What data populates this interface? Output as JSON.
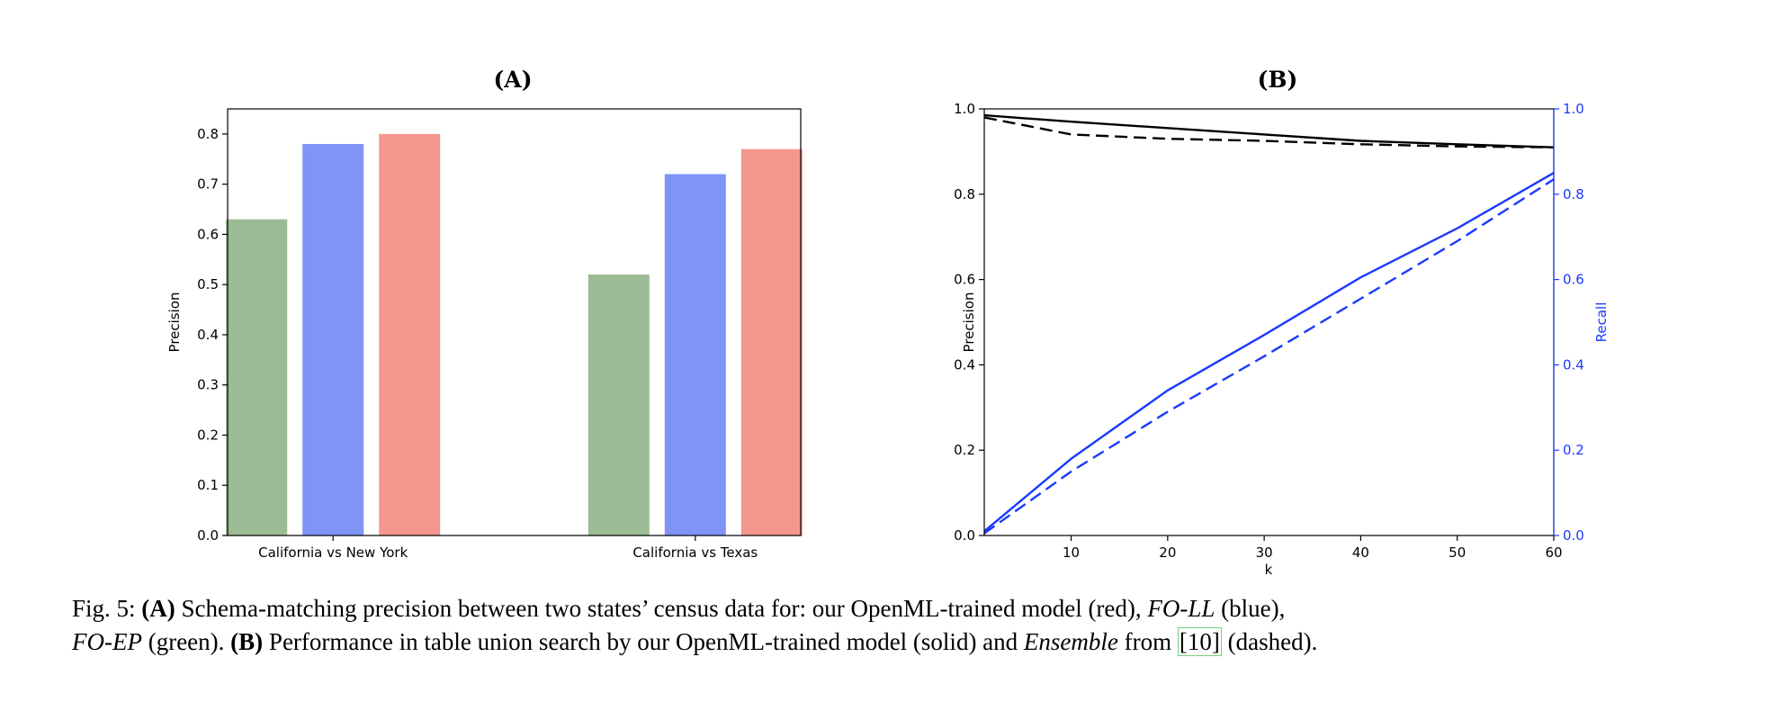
{
  "chart_data": [
    {
      "type": "bar",
      "title": "(A)",
      "ylabel": "Precision",
      "xlabel": "",
      "ylim": [
        0,
        0.85
      ],
      "yticks": [
        "0.0",
        "0.1",
        "0.2",
        "0.3",
        "0.4",
        "0.5",
        "0.6",
        "0.7",
        "0.8"
      ],
      "categories": [
        "California vs New York",
        "California vs Texas"
      ],
      "series": [
        {
          "color": "#9cbb94",
          "values": [
            0.63,
            0.52
          ]
        },
        {
          "color": "#8093f7",
          "values": [
            0.78,
            0.72
          ]
        },
        {
          "color": "#f4978f",
          "values": [
            0.8,
            0.77
          ]
        }
      ],
      "grid": false
    },
    {
      "type": "line",
      "title": "(B)",
      "xlabel": "k",
      "ylabel": "Precision",
      "ylabel_right": "Recall",
      "xlim": [
        1,
        60
      ],
      "ylim": [
        0,
        1.0
      ],
      "ylim_right": [
        0,
        1.0
      ],
      "xticks": [
        "10",
        "20",
        "30",
        "40",
        "50",
        "60"
      ],
      "yticks": [
        "0.0",
        "0.2",
        "0.4",
        "0.6",
        "0.8",
        "1.0"
      ],
      "yticks_right": [
        "0.0",
        "0.2",
        "0.4",
        "0.6",
        "0.8",
        "1.0"
      ],
      "x": [
        1,
        10,
        20,
        30,
        40,
        50,
        60
      ],
      "series": [
        {
          "axis": "left",
          "color": "#000000",
          "style": "solid",
          "values": [
            0.985,
            0.97,
            0.955,
            0.94,
            0.925,
            0.917,
            0.91
          ]
        },
        {
          "axis": "left",
          "color": "#000000",
          "style": "dashed",
          "values": [
            0.98,
            0.94,
            0.93,
            0.925,
            0.917,
            0.912,
            0.91
          ]
        },
        {
          "axis": "right",
          "color": "#1a3aff",
          "style": "solid",
          "values": [
            0.01,
            0.18,
            0.34,
            0.47,
            0.605,
            0.72,
            0.85
          ]
        },
        {
          "axis": "right",
          "color": "#1a3aff",
          "style": "dashed",
          "values": [
            0.005,
            0.15,
            0.29,
            0.42,
            0.555,
            0.69,
            0.835
          ]
        }
      ],
      "grid": false
    }
  ],
  "caption": {
    "figure_label": "Fig. 5:",
    "a_label": "(A)",
    "a_text": "Schema-matching precision between two states’ census data for: our OpenML-trained model (red),",
    "fo_ll": "FO-LL",
    "blue": "(blue),",
    "fo_ep": "FO-EP",
    "green": "(green).",
    "b_label": "(B)",
    "b_text": "Performance in table union search by our OpenML-trained model (solid) and",
    "ensemble": "Ensemble",
    "from": "from",
    "citation": "[10]",
    "dashed": "(dashed)."
  }
}
